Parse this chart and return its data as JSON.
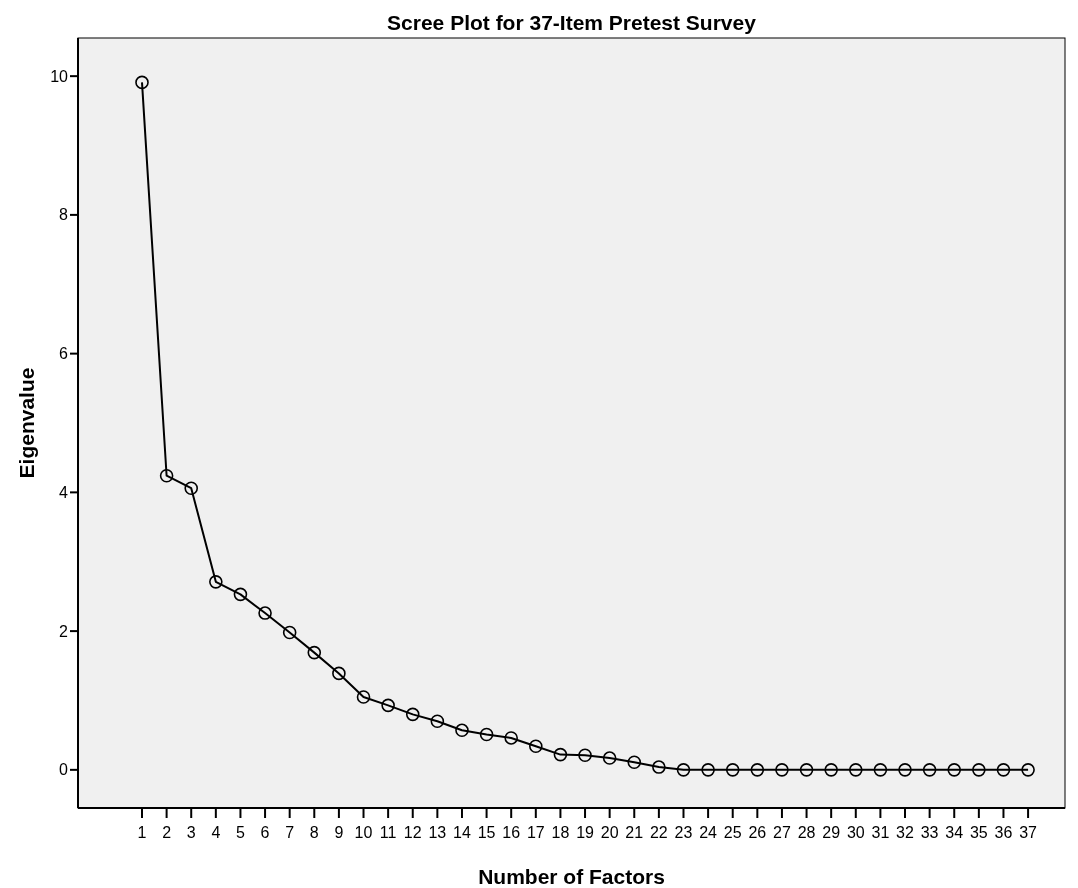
{
  "chart_data": {
    "type": "line",
    "title": "Scree Plot for 37-Item Pretest Survey",
    "xlabel": "Number of Factors",
    "ylabel": "Eigenvalue",
    "x": [
      1,
      2,
      3,
      4,
      5,
      6,
      7,
      8,
      9,
      10,
      11,
      12,
      13,
      14,
      15,
      16,
      17,
      18,
      19,
      20,
      21,
      22,
      23,
      24,
      25,
      26,
      27,
      28,
      29,
      30,
      31,
      32,
      33,
      34,
      35,
      36,
      37
    ],
    "series": [
      {
        "color": "#000000",
        "values": [
          9.91,
          4.24,
          4.06,
          2.71,
          2.53,
          2.26,
          1.98,
          1.69,
          1.39,
          1.05,
          0.93,
          0.8,
          0.7,
          0.57,
          0.51,
          0.46,
          0.34,
          0.22,
          0.21,
          0.17,
          0.11,
          0.04,
          0,
          0,
          0,
          0,
          0,
          0,
          0,
          0,
          0,
          0,
          0,
          0,
          0,
          0,
          0
        ]
      }
    ],
    "xlim": [
      -1.6,
      38.5
    ],
    "xticks": [
      1,
      2,
      3,
      4,
      5,
      6,
      7,
      8,
      9,
      10,
      11,
      12,
      13,
      14,
      15,
      16,
      17,
      18,
      19,
      20,
      21,
      22,
      23,
      24,
      25,
      26,
      27,
      28,
      29,
      30,
      31,
      32,
      33,
      34,
      35,
      36,
      37
    ],
    "ylim": [
      -0.55,
      10.55
    ],
    "yticks": [
      0,
      2,
      4,
      6,
      8,
      10
    ],
    "grid": false,
    "marker": "circle",
    "line_style": "solid"
  }
}
